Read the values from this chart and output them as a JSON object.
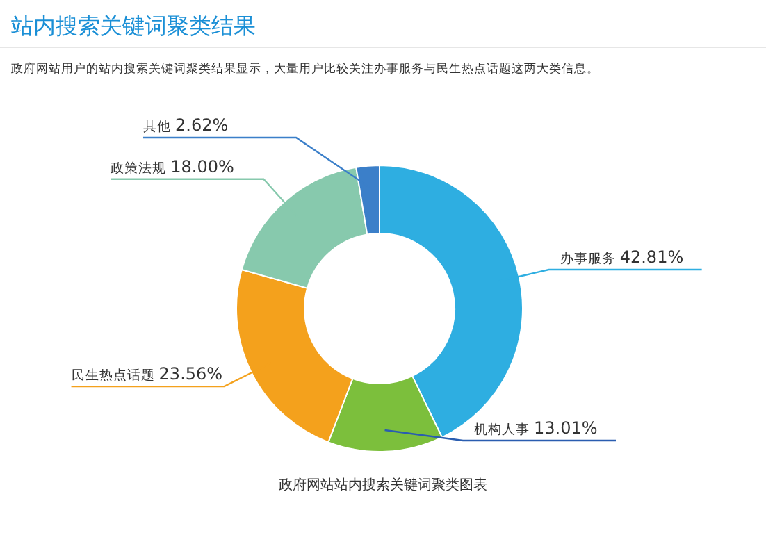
{
  "chart_data": {
    "type": "donut",
    "title": "站内搜索关键词聚类结果",
    "subtitle": "政府网站用户的站内搜索关键词聚类结果显示，大量用户比较关注办事服务与民生热点话题这两大类信息。",
    "categories": [
      "办事服务",
      "机构人事",
      "民生热点话题",
      "政策法规",
      "其他"
    ],
    "values": [
      42.81,
      13.01,
      23.56,
      18.0,
      2.62
    ],
    "colors": [
      "#2eaee1",
      "#7cbf3c",
      "#f4a11c",
      "#87c9ad",
      "#3b7fc9"
    ],
    "value_labels": [
      "42.81%",
      "13.01%",
      "23.56%",
      "18.00%",
      "2.62%"
    ],
    "annotations": [
      "政府网站站内搜索关键词聚类图表"
    ]
  }
}
